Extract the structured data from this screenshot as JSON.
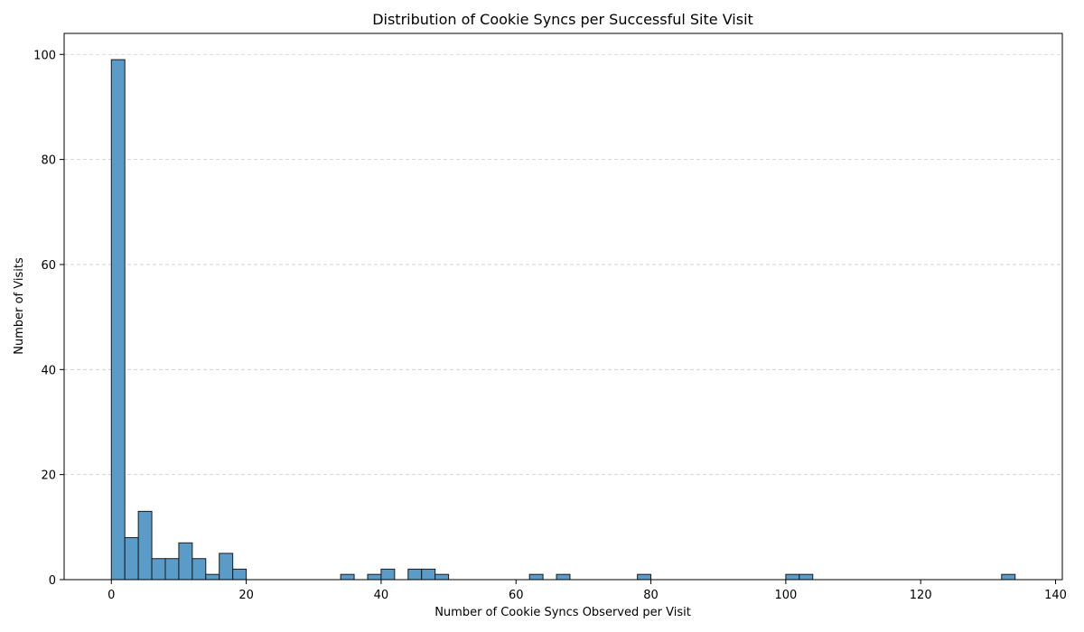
{
  "chart_data": {
    "type": "bar",
    "title": "Distribution of Cookie Syncs per Successful Site Visit",
    "xlabel": "Number of Cookie Syncs Observed per Visit",
    "ylabel": "Number of Visits",
    "xlim": [
      -7,
      141
    ],
    "ylim": [
      0,
      104
    ],
    "xticks": [
      0,
      20,
      40,
      60,
      80,
      100,
      120,
      140
    ],
    "yticks": [
      0,
      20,
      40,
      60,
      80,
      100
    ],
    "grid": "y-dashed",
    "bar_color": "#5b9bc8",
    "bin_width": 2,
    "bins": [
      {
        "start": 0,
        "count": 99
      },
      {
        "start": 2,
        "count": 8
      },
      {
        "start": 4,
        "count": 13
      },
      {
        "start": 6,
        "count": 4
      },
      {
        "start": 8,
        "count": 4
      },
      {
        "start": 10,
        "count": 7
      },
      {
        "start": 12,
        "count": 4
      },
      {
        "start": 14,
        "count": 1
      },
      {
        "start": 16,
        "count": 5
      },
      {
        "start": 18,
        "count": 2
      },
      {
        "start": 34,
        "count": 1
      },
      {
        "start": 38,
        "count": 1
      },
      {
        "start": 40,
        "count": 2
      },
      {
        "start": 44,
        "count": 2
      },
      {
        "start": 46,
        "count": 2
      },
      {
        "start": 48,
        "count": 1
      },
      {
        "start": 62,
        "count": 1
      },
      {
        "start": 66,
        "count": 1
      },
      {
        "start": 78,
        "count": 1
      },
      {
        "start": 100,
        "count": 1
      },
      {
        "start": 102,
        "count": 1
      },
      {
        "start": 132,
        "count": 1
      }
    ]
  }
}
